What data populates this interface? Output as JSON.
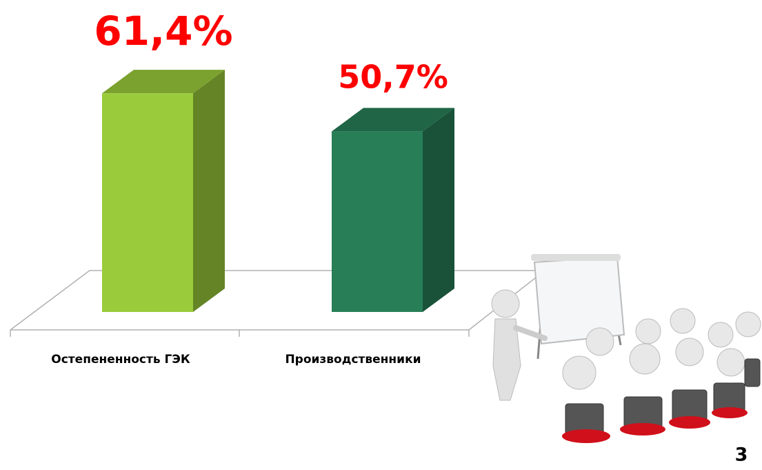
{
  "chart_data": {
    "type": "bar3d",
    "categories": [
      "Остепененность ГЭК",
      "Производственники"
    ],
    "values": [
      61.4,
      50.7
    ],
    "value_labels": [
      "61,4%",
      "50,7%"
    ],
    "colors": [
      "#9acb3a",
      "#277e57"
    ]
  },
  "page_number": "3"
}
